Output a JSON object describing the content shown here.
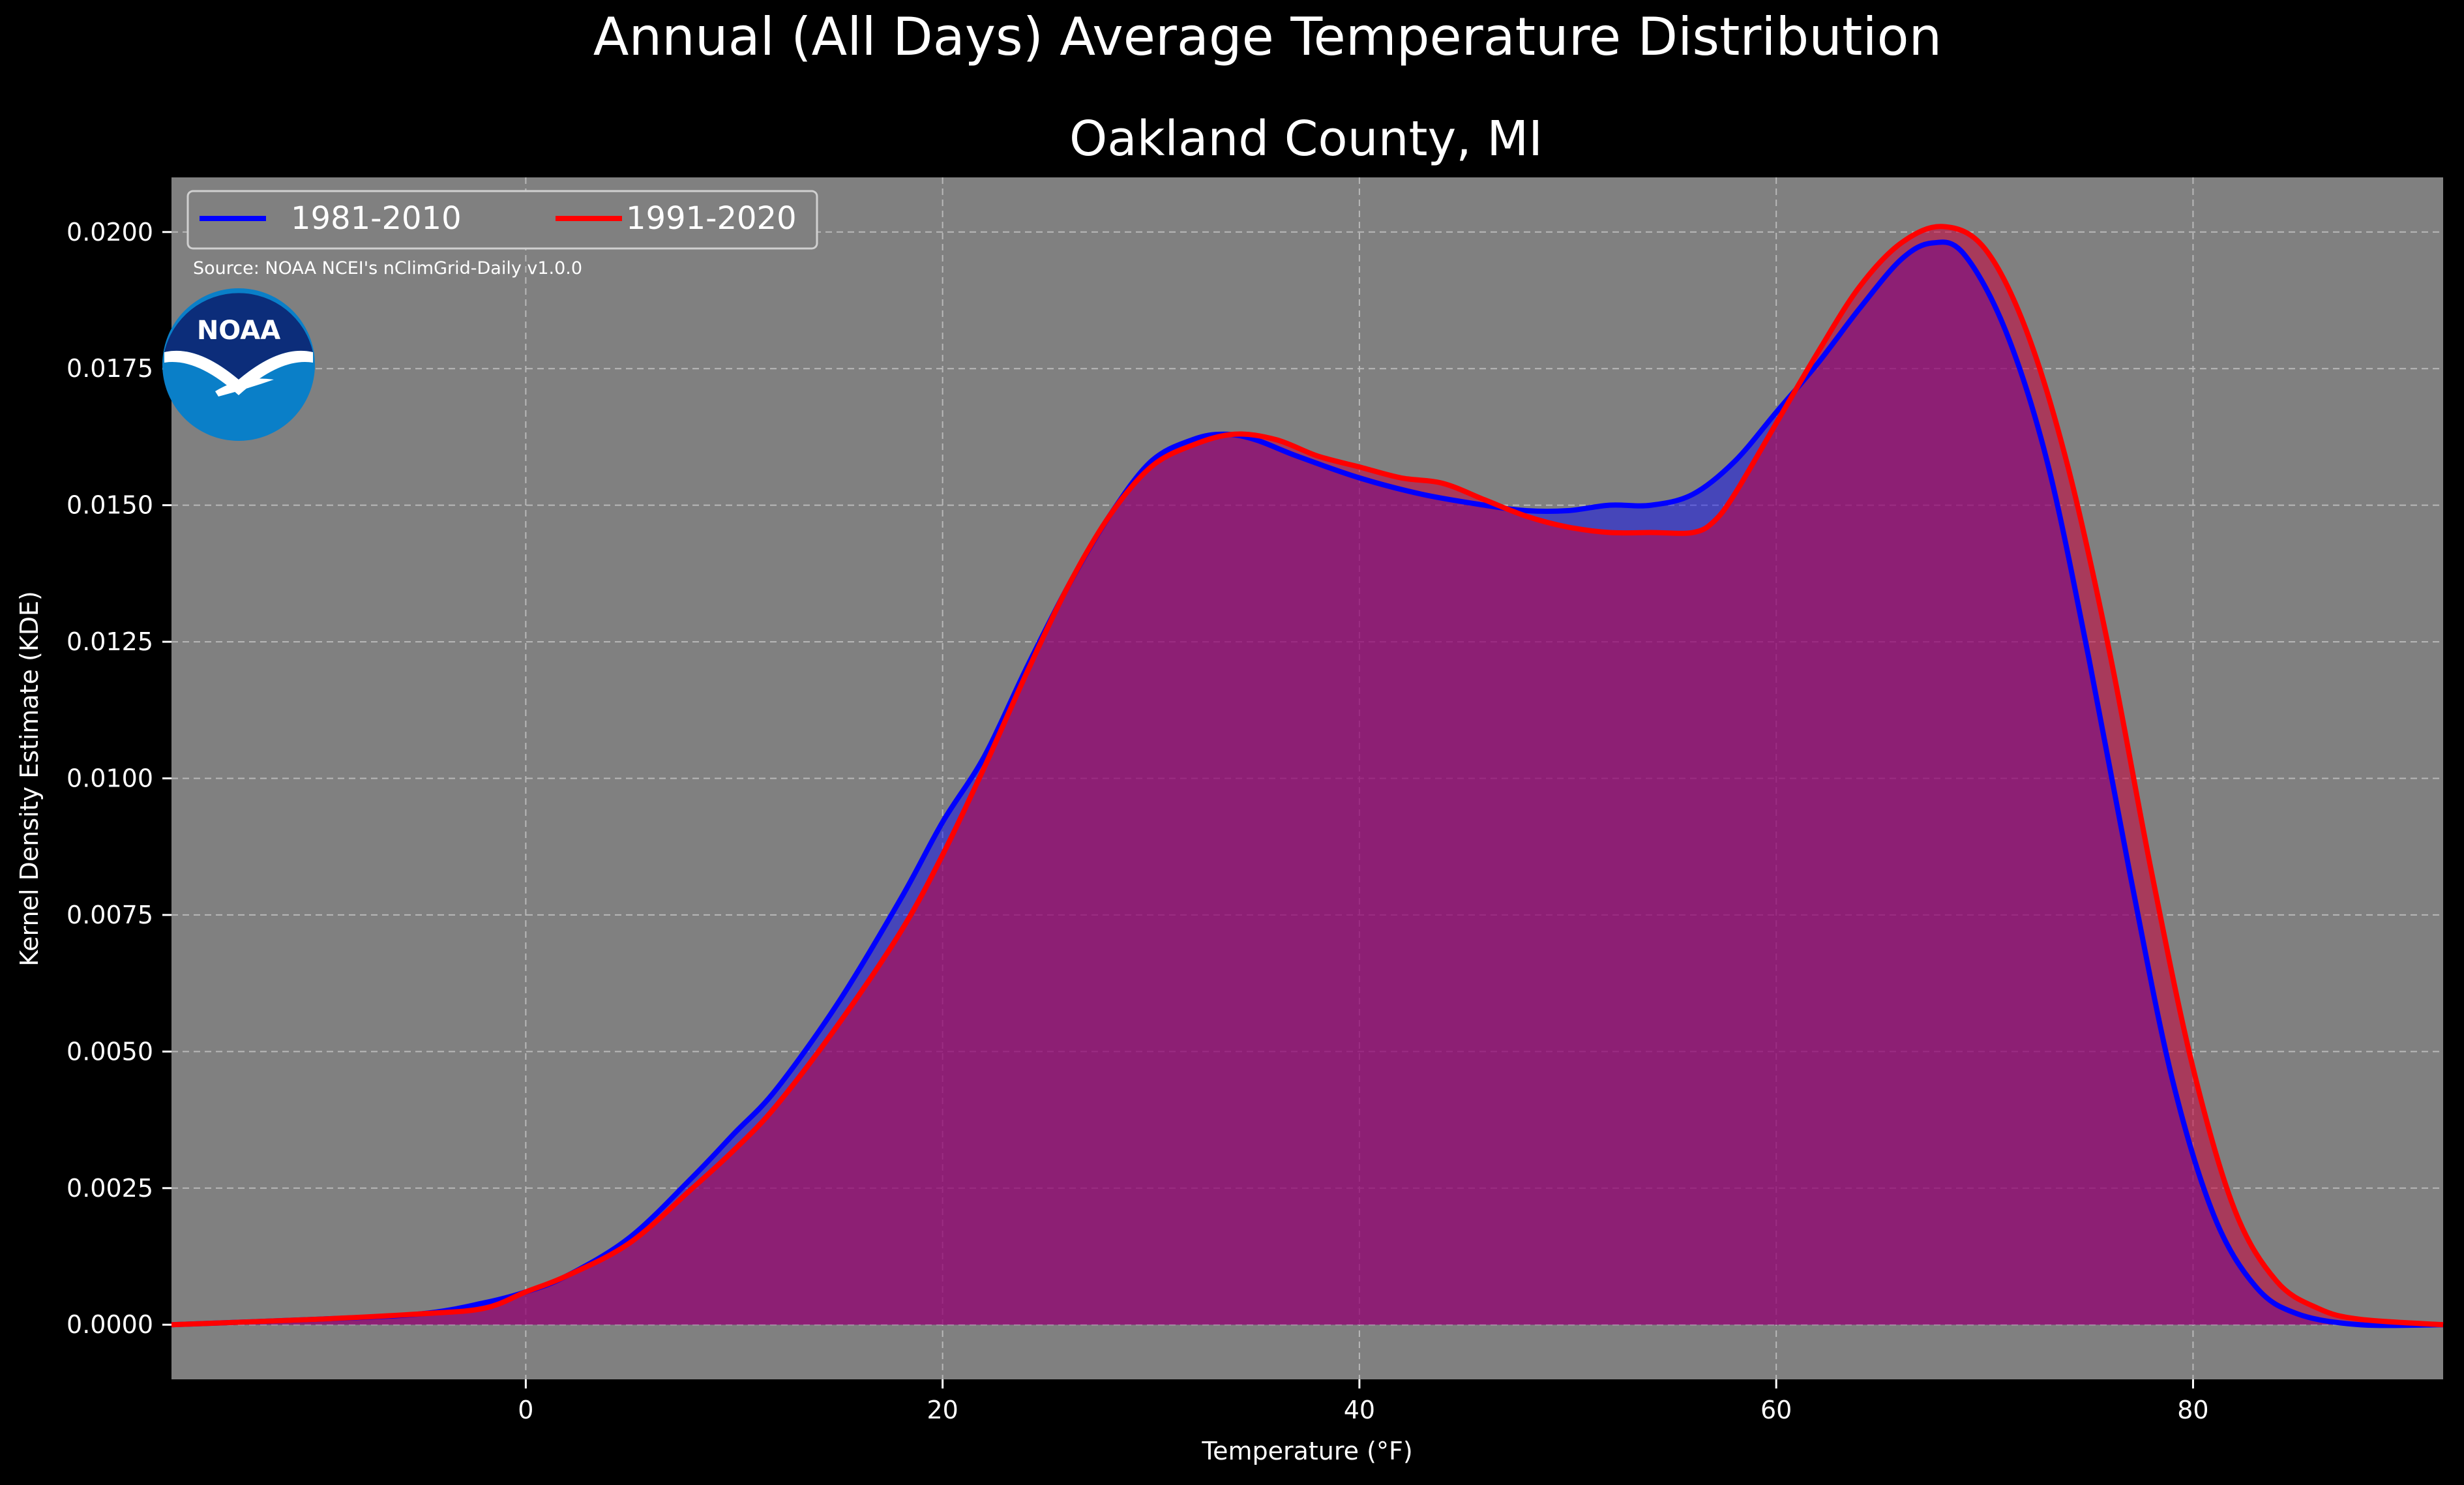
{
  "chart_data": {
    "type": "area",
    "title": "Annual (All Days) Average Temperature Distribution",
    "subtitle": "Oakland County, MI",
    "xlabel": "Temperature (°F)",
    "ylabel": "Kernel Density Estimate (KDE)",
    "xlim": [
      -17,
      92
    ],
    "ylim": [
      -0.001,
      0.021
    ],
    "xticks": [
      0,
      20,
      40,
      60,
      80
    ],
    "xtick_labels": [
      "0",
      "20",
      "40",
      "60",
      "80"
    ],
    "yticks": [
      0,
      0.0025,
      0.005,
      0.0075,
      0.01,
      0.0125,
      0.015,
      0.0175,
      0.02
    ],
    "ytick_labels": [
      "0.0000",
      "0.0025",
      "0.0050",
      "0.0075",
      "0.0100",
      "0.0125",
      "0.0150",
      "0.0175",
      "0.0200"
    ],
    "grid": true,
    "legend_position": "top-left",
    "annotation": "Source: NOAA NCEI's nClimGrid-Daily v1.0.0",
    "logo_text": "NOAA",
    "series": [
      {
        "name": "1981-2010",
        "color": "#0000ff",
        "fill": "rgba(0,0,255,0.45)",
        "x": [
          -17,
          -10,
          -5,
          -2,
          0,
          2,
          5,
          8,
          10,
          12,
          15,
          18,
          20,
          22,
          24,
          26,
          28,
          30,
          32,
          33.5,
          35,
          37,
          40,
          43,
          46,
          48,
          50,
          52,
          54,
          56,
          58,
          60,
          62,
          64,
          66,
          67.5,
          69,
          71,
          73,
          75,
          77,
          79,
          81,
          83,
          85,
          88,
          92
        ],
        "y": [
          0.0,
          0.0001,
          0.0002,
          0.0004,
          0.0006,
          0.0009,
          0.0016,
          0.0027,
          0.0035,
          0.0043,
          0.0059,
          0.0078,
          0.0092,
          0.0104,
          0.012,
          0.0135,
          0.0148,
          0.0158,
          0.0162,
          0.0163,
          0.0162,
          0.0159,
          0.0155,
          0.0152,
          0.015,
          0.0149,
          0.0149,
          0.015,
          0.015,
          0.0152,
          0.0158,
          0.0167,
          0.0176,
          0.0186,
          0.0195,
          0.0198,
          0.0196,
          0.0182,
          0.0158,
          0.0122,
          0.0082,
          0.0045,
          0.002,
          0.0007,
          0.0002,
          0.0,
          0.0
        ]
      },
      {
        "name": "1991-2020",
        "color": "#ff0000",
        "fill": "rgba(200,0,60,0.55)",
        "x": [
          -17,
          -10,
          -5,
          -2,
          0,
          2,
          5,
          8,
          10,
          12,
          15,
          18,
          20,
          22,
          24,
          26,
          28,
          30,
          32,
          34,
          36,
          38,
          40,
          42,
          44,
          46,
          48,
          50,
          52,
          54,
          56,
          57,
          58,
          60,
          62,
          64,
          66,
          68,
          70,
          72,
          74,
          76,
          78,
          80,
          82,
          84,
          86,
          88,
          92
        ],
        "y": [
          0.0,
          0.0001,
          0.0002,
          0.0003,
          0.0006,
          0.0009,
          0.0015,
          0.0025,
          0.0032,
          0.004,
          0.0055,
          0.0072,
          0.0086,
          0.0102,
          0.0119,
          0.0135,
          0.0148,
          0.0157,
          0.0161,
          0.0163,
          0.0162,
          0.0159,
          0.0157,
          0.0155,
          0.0154,
          0.0151,
          0.0148,
          0.0146,
          0.0145,
          0.0145,
          0.0145,
          0.0147,
          0.0152,
          0.0165,
          0.0178,
          0.019,
          0.0198,
          0.0201,
          0.0197,
          0.0182,
          0.0157,
          0.0123,
          0.0083,
          0.0047,
          0.0021,
          0.0008,
          0.0003,
          0.0001,
          0.0
        ]
      }
    ]
  }
}
